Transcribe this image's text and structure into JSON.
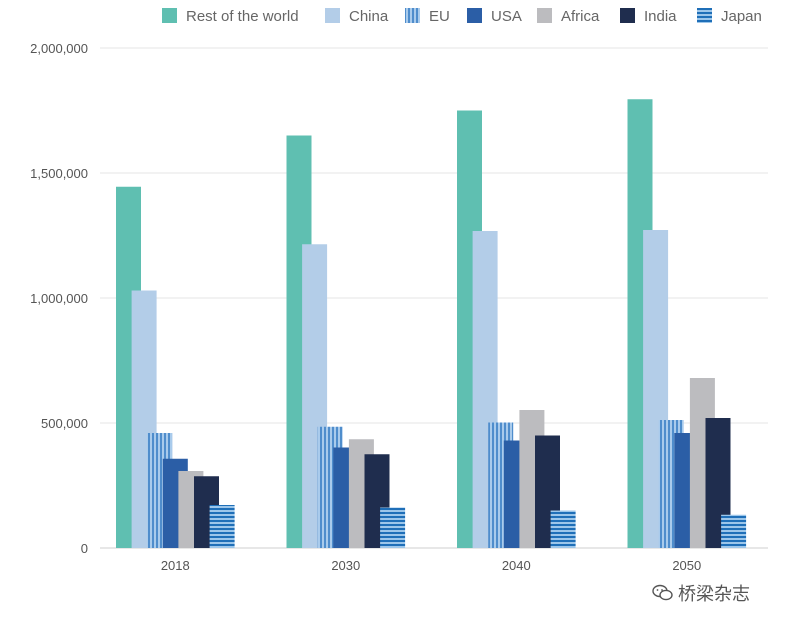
{
  "chart_data": {
    "type": "bar",
    "title": "",
    "xlabel": "",
    "ylabel": "",
    "ylim": [
      0,
      2000000
    ],
    "yticks": [
      0,
      500000,
      1000000,
      1500000,
      2000000
    ],
    "ytick_labels": [
      "0",
      "500,000",
      "1,000,000",
      "1,500,000",
      "2,000,000"
    ],
    "grid": true,
    "legend_position": "top",
    "categories": [
      "2018",
      "2030",
      "2040",
      "2050"
    ],
    "series": [
      {
        "name": "Rest of the world",
        "color": "#5fbfb1",
        "pattern": "solid",
        "values": [
          1445000,
          1650000,
          1750000,
          1795000
        ]
      },
      {
        "name": "China",
        "color": "#b3cde8",
        "pattern": "solid",
        "values": [
          1030000,
          1215000,
          1268000,
          1272000
        ]
      },
      {
        "name": "EU",
        "color": "#6fa6d8",
        "pattern": "vertical-stripes",
        "values": [
          460000,
          485000,
          502000,
          512000
        ]
      },
      {
        "name": "USA",
        "color": "#2b5ea6",
        "pattern": "solid",
        "values": [
          357000,
          402000,
          430000,
          460000
        ]
      },
      {
        "name": "Africa",
        "color": "#bcbcbf",
        "pattern": "solid",
        "values": [
          308000,
          435000,
          552000,
          680000
        ]
      },
      {
        "name": "India",
        "color": "#1f2d4e",
        "pattern": "solid",
        "values": [
          287000,
          375000,
          450000,
          520000
        ]
      },
      {
        "name": "Japan",
        "color": "#2878c0",
        "pattern": "horizontal-stripes",
        "values": [
          172000,
          162000,
          150000,
          133000
        ]
      }
    ]
  },
  "watermark": {
    "text": "桥梁杂志",
    "icon": "wechat-icon"
  }
}
